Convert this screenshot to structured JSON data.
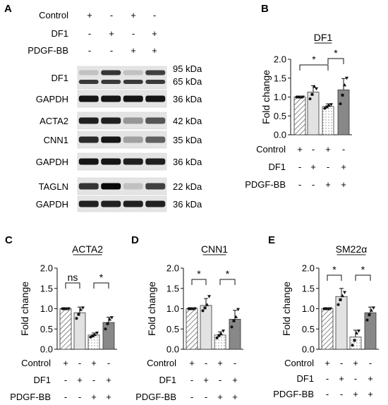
{
  "panel_a": {
    "panel_label": "A",
    "conditions": [
      {
        "name": "Control",
        "signs": [
          "+",
          "-",
          "+",
          "-"
        ]
      },
      {
        "name": "DF1",
        "signs": [
          "-",
          "+",
          "-",
          "+"
        ]
      },
      {
        "name": "PDGF-BB",
        "signs": [
          "-",
          "-",
          "+",
          "+"
        ]
      }
    ],
    "blots": [
      {
        "label": "DF1",
        "kda": [
          "95 kDa",
          "65 kDa"
        ],
        "bands": [
          0.15,
          0.8,
          0.15,
          0.75
        ]
      },
      {
        "label": "GAPDH",
        "kda": [
          "36 kDa"
        ],
        "bands": [
          0.95,
          0.95,
          0.95,
          0.95
        ]
      },
      {
        "label": "ACTA2",
        "kda": [
          "42 kDa"
        ],
        "bands": [
          0.9,
          0.9,
          0.35,
          0.65
        ]
      },
      {
        "label": "CNN1",
        "kda": [
          "35 kDa"
        ],
        "bands": [
          0.85,
          0.95,
          0.3,
          0.6
        ]
      },
      {
        "label": "GAPDH",
        "kda": [
          "36 kDa"
        ],
        "bands": [
          0.95,
          0.95,
          0.9,
          0.9
        ]
      },
      {
        "label": "TAGLN",
        "kda": [
          "22 kDa"
        ],
        "bands": [
          0.8,
          1.0,
          0.15,
          0.75
        ]
      },
      {
        "label": "GAPDH",
        "kda": [
          "36 kDa"
        ],
        "bands": [
          0.9,
          0.9,
          0.9,
          0.9
        ]
      }
    ]
  },
  "chart_data": [
    {
      "panel_label": "B",
      "type": "bar",
      "title": "DF1",
      "ylabel": "Fold change",
      "ylim": [
        0,
        2.0
      ],
      "yticks": [
        "0.0",
        "0.5",
        "1.0",
        "1.5",
        "2.0"
      ],
      "values": [
        1.0,
        1.13,
        0.75,
        1.19
      ],
      "errors": [
        0.0,
        0.17,
        0.07,
        0.3
      ],
      "points": [
        [
          1.0,
          1.0,
          1.0,
          1.0
        ],
        [
          0.95,
          1.07,
          1.28,
          1.22
        ],
        [
          0.7,
          0.74,
          0.78,
          0.8
        ],
        [
          0.82,
          1.05,
          1.32,
          1.5
        ]
      ],
      "sig": [
        {
          "from": 0,
          "to": 2,
          "label": "*"
        },
        {
          "from": 2,
          "to": 3,
          "label": "*"
        }
      ],
      "conditions": [
        {
          "name": "Control",
          "signs": [
            "+",
            "-",
            "+",
            "-"
          ]
        },
        {
          "name": "DF1",
          "signs": [
            "-",
            "+",
            "-",
            "+"
          ]
        },
        {
          "name": "PDGF-BB",
          "signs": [
            "-",
            "-",
            "+",
            "+"
          ]
        }
      ]
    },
    {
      "panel_label": "C",
      "type": "bar",
      "title": "ACTA2",
      "ylabel": "Fold change",
      "ylim": [
        0,
        2.0
      ],
      "yticks": [
        "0.0",
        "0.5",
        "1.0",
        "1.5",
        "2.0"
      ],
      "values": [
        1.0,
        0.9,
        0.35,
        0.66
      ],
      "errors": [
        0.0,
        0.14,
        0.05,
        0.13
      ],
      "points": [
        [
          1.0,
          1.0,
          1.0,
          1.0
        ],
        [
          0.76,
          0.86,
          0.98,
          1.02
        ],
        [
          0.3,
          0.33,
          0.36,
          0.4
        ],
        [
          0.5,
          0.63,
          0.74,
          0.78
        ]
      ],
      "sig": [
        {
          "from": 0,
          "to": 1,
          "label": "ns"
        },
        {
          "from": 2,
          "to": 3,
          "label": "*"
        }
      ],
      "conditions": [
        {
          "name": "Control",
          "signs": [
            "+",
            "-",
            "+",
            "-"
          ]
        },
        {
          "name": "DF1",
          "signs": [
            "-",
            "+",
            "-",
            "+"
          ]
        },
        {
          "name": "PDGF-BB",
          "signs": [
            "-",
            "-",
            "+",
            "+"
          ]
        }
      ]
    },
    {
      "panel_label": "D",
      "type": "bar",
      "title": "CNN1",
      "ylabel": "Fold change",
      "ylim": [
        0,
        2.0
      ],
      "yticks": [
        "0.0",
        "0.5",
        "1.0",
        "1.5",
        "2.0"
      ],
      "values": [
        1.0,
        1.08,
        0.35,
        0.74
      ],
      "errors": [
        0.0,
        0.17,
        0.08,
        0.22
      ],
      "points": [
        [
          1.0,
          1.0,
          1.0,
          1.0
        ],
        [
          0.95,
          1.02,
          1.1,
          1.3
        ],
        [
          0.28,
          0.34,
          0.38,
          0.45
        ],
        [
          0.55,
          0.7,
          0.8,
          0.98
        ]
      ],
      "sig": [
        {
          "from": 0,
          "to": 1,
          "label": "*"
        },
        {
          "from": 2,
          "to": 3,
          "label": "*"
        }
      ],
      "conditions": [
        {
          "name": "Control",
          "signs": [
            "+",
            "-",
            "+",
            "-"
          ]
        },
        {
          "name": "DF1",
          "signs": [
            "-",
            "+",
            "-",
            "+"
          ]
        },
        {
          "name": "PDGF-BB",
          "signs": [
            "-",
            "-",
            "+",
            "+"
          ]
        }
      ]
    },
    {
      "panel_label": "E",
      "type": "bar",
      "title": "SM22α",
      "ylabel": "Fold change",
      "ylim": [
        0,
        2.0
      ],
      "yticks": [
        "0.0",
        "0.5",
        "1.0",
        "1.5",
        "2.0"
      ],
      "values": [
        1.0,
        1.3,
        0.3,
        0.9
      ],
      "errors": [
        0.0,
        0.2,
        0.17,
        0.14
      ],
      "points": [
        [
          1.0,
          1.0,
          1.0,
          1.0
        ],
        [
          1.1,
          1.22,
          1.32,
          1.4
        ],
        [
          0.1,
          0.22,
          0.4,
          0.45
        ],
        [
          0.72,
          0.85,
          0.96,
          1.02
        ]
      ],
      "sig": [
        {
          "from": 0,
          "to": 1,
          "label": "*"
        },
        {
          "from": 2,
          "to": 3,
          "label": "*"
        }
      ],
      "conditions": [
        {
          "name": "Control",
          "signs": [
            "+",
            "-",
            "+",
            "-"
          ]
        },
        {
          "name": "DF1",
          "signs": [
            "-",
            "+",
            "-",
            "+"
          ]
        },
        {
          "name": "PDGF-BB",
          "signs": [
            "-",
            "-",
            "+",
            "+"
          ]
        }
      ]
    }
  ]
}
